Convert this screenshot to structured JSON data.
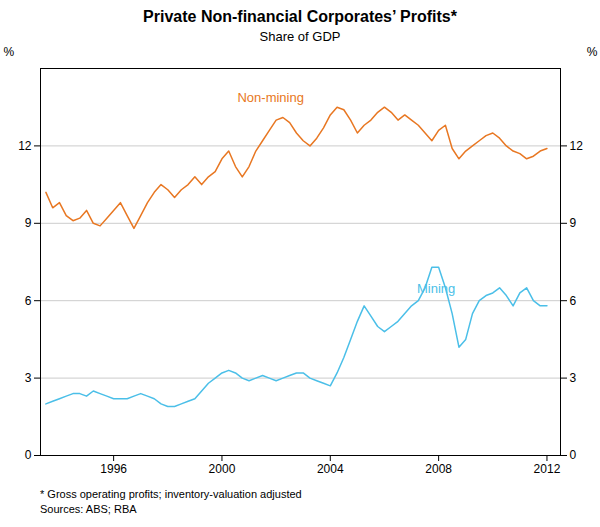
{
  "chart_data": {
    "type": "line",
    "title": "Private Non-financial Corporates’ Profits*",
    "subtitle": "Share of GDP",
    "footnote": "*    Gross operating profits; inventory-valuation adjusted",
    "source": "Sources: ABS; RBA",
    "ylabel": "%",
    "y2label": "%",
    "xlim": [
      1993.3,
      2012.5
    ],
    "xticks": [
      1996,
      2000,
      2004,
      2008,
      2012
    ],
    "ylim": [
      0,
      15
    ],
    "yticks": [
      0,
      3,
      6,
      9,
      12
    ],
    "y2lim": [
      0,
      15
    ],
    "y2ticks": [
      0,
      3,
      6,
      9,
      12
    ],
    "grid": true,
    "x": [
      1993.5,
      1993.75,
      1994.0,
      1994.25,
      1994.5,
      1994.75,
      1995.0,
      1995.25,
      1995.5,
      1995.75,
      1996.0,
      1996.25,
      1996.5,
      1996.75,
      1997.0,
      1997.25,
      1997.5,
      1997.75,
      1998.0,
      1998.25,
      1998.5,
      1998.75,
      1999.0,
      1999.25,
      1999.5,
      1999.75,
      2000.0,
      2000.25,
      2000.5,
      2000.75,
      2001.0,
      2001.25,
      2001.5,
      2001.75,
      2002.0,
      2002.25,
      2002.5,
      2002.75,
      2003.0,
      2003.25,
      2003.5,
      2003.75,
      2004.0,
      2004.25,
      2004.5,
      2004.75,
      2005.0,
      2005.25,
      2005.5,
      2005.75,
      2006.0,
      2006.25,
      2006.5,
      2006.75,
      2007.0,
      2007.25,
      2007.5,
      2007.75,
      2008.0,
      2008.25,
      2008.5,
      2008.75,
      2009.0,
      2009.25,
      2009.5,
      2009.75,
      2010.0,
      2010.25,
      2010.5,
      2010.75,
      2011.0,
      2011.25,
      2011.5,
      2011.75,
      2012.0
    ],
    "series": [
      {
        "name": "Non-mining",
        "color": "#E87722",
        "values": [
          10.2,
          9.6,
          9.8,
          9.3,
          9.1,
          9.2,
          9.5,
          9.0,
          8.9,
          9.2,
          9.5,
          9.8,
          9.3,
          8.8,
          9.3,
          9.8,
          10.2,
          10.5,
          10.3,
          10.0,
          10.3,
          10.5,
          10.8,
          10.5,
          10.8,
          11.0,
          11.5,
          11.8,
          11.2,
          10.8,
          11.2,
          11.8,
          12.2,
          12.6,
          13.0,
          13.1,
          12.9,
          12.5,
          12.2,
          12.0,
          12.3,
          12.7,
          13.2,
          13.5,
          13.4,
          13.0,
          12.5,
          12.8,
          13.0,
          13.3,
          13.5,
          13.3,
          13.0,
          13.2,
          13.0,
          12.8,
          12.5,
          12.2,
          12.6,
          12.8,
          11.9,
          11.5,
          11.8,
          12.0,
          12.2,
          12.4,
          12.5,
          12.3,
          12.0,
          11.8,
          11.7,
          11.5,
          11.6,
          11.8,
          11.9
        ]
      },
      {
        "name": "Mining",
        "color": "#4BBFE8",
        "values": [
          2.0,
          2.1,
          2.2,
          2.3,
          2.4,
          2.4,
          2.3,
          2.5,
          2.4,
          2.3,
          2.2,
          2.2,
          2.2,
          2.3,
          2.4,
          2.3,
          2.2,
          2.0,
          1.9,
          1.9,
          2.0,
          2.1,
          2.2,
          2.5,
          2.8,
          3.0,
          3.2,
          3.3,
          3.2,
          3.0,
          2.9,
          3.0,
          3.1,
          3.0,
          2.9,
          3.0,
          3.1,
          3.2,
          3.2,
          3.0,
          2.9,
          2.8,
          2.7,
          3.2,
          3.8,
          4.5,
          5.2,
          5.8,
          5.4,
          5.0,
          4.8,
          5.0,
          5.2,
          5.5,
          5.8,
          6.0,
          6.5,
          7.3,
          7.3,
          6.5,
          5.5,
          4.2,
          4.5,
          5.5,
          6.0,
          6.2,
          6.3,
          6.5,
          6.2,
          5.8,
          6.3,
          6.5,
          6.0,
          5.8,
          5.8
        ]
      }
    ],
    "annotations": [
      {
        "text": "Non-mining",
        "x": 2001.8,
        "y": 13.7
      },
      {
        "text": "Mining",
        "x": 2007.2,
        "y": 6.3
      }
    ]
  }
}
